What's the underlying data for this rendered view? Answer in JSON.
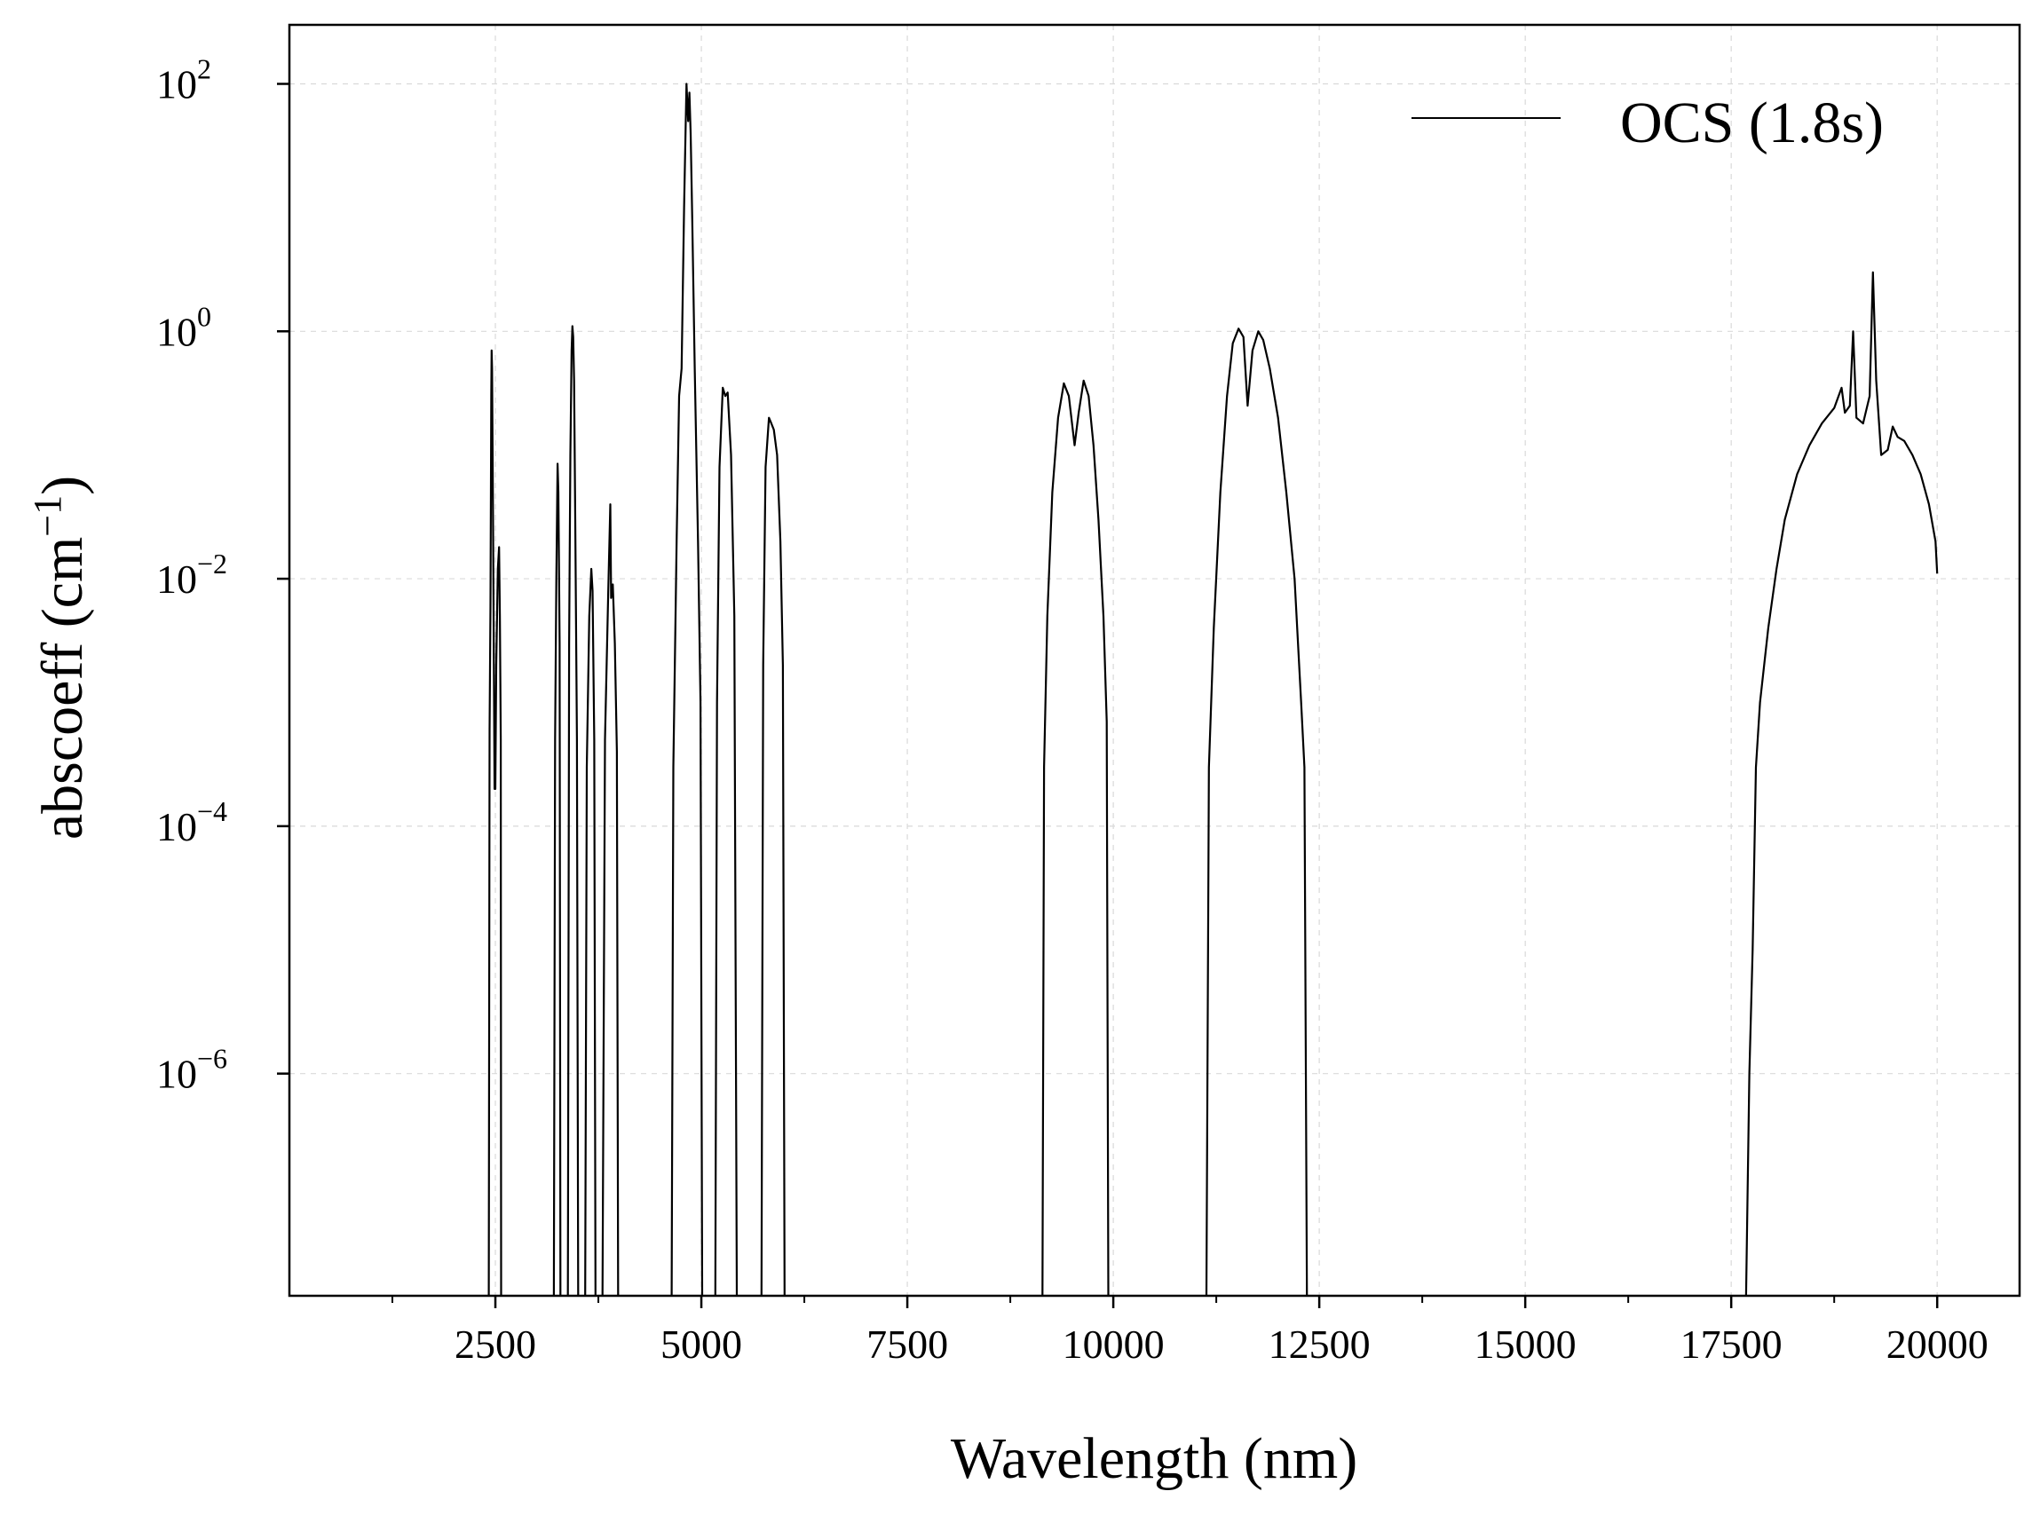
{
  "chart_data": {
    "type": "line",
    "title": "",
    "xlabel": "Wavelength (nm)",
    "ylabel": "abscoeff (cm",
    "ylabel_unit_exponent": "−1",
    "ylabel_close": ")",
    "yscale": "log",
    "grid": true,
    "legend_placement": "top-right",
    "xlim": [
      0,
      21000
    ],
    "ylim": [
      1.6e-08,
      300
    ],
    "x_ticks": [
      {
        "value": 2500,
        "label": "2500"
      },
      {
        "value": 5000,
        "label": "5000"
      },
      {
        "value": 7500,
        "label": "7500"
      },
      {
        "value": 10000,
        "label": "10000"
      },
      {
        "value": 12500,
        "label": "12500"
      },
      {
        "value": 15000,
        "label": "15000"
      },
      {
        "value": 17500,
        "label": "17500"
      },
      {
        "value": 20000,
        "label": "20000"
      }
    ],
    "x_minor_ticks": [
      1250,
      3750,
      6250,
      8750,
      11250,
      13750,
      16250,
      18750
    ],
    "y_ticks": [
      {
        "value": 100.0,
        "base": "10",
        "exp": "2"
      },
      {
        "value": 1.0,
        "base": "10",
        "exp": "0"
      },
      {
        "value": 0.01,
        "base": "10",
        "exp": "−2"
      },
      {
        "value": 0.0001,
        "base": "10",
        "exp": "−4"
      },
      {
        "value": 1e-06,
        "base": "10",
        "exp": "−6"
      }
    ],
    "series": [
      {
        "name": "OCS (1.8s)",
        "color": "#000000",
        "segments": [
          [
            [
              2420,
              1.6e-08
            ],
            [
              2430,
              0.0006
            ],
            [
              2440,
              0.006
            ],
            [
              2450,
              0.3
            ],
            [
              2455,
              0.7
            ],
            [
              2460,
              0.5
            ],
            [
              2470,
              0.05
            ],
            [
              2480,
              0.003
            ],
            [
              2490,
              0.0002
            ],
            [
              2500,
              0.0002
            ],
            [
              2510,
              0.002
            ],
            [
              2530,
              0.012
            ],
            [
              2545,
              0.018
            ],
            [
              2555,
              0.005
            ],
            [
              2565,
              0.0005
            ],
            [
              2570,
              1.6e-08
            ]
          ],
          [
            [
              3210,
              1.6e-08
            ],
            [
              3225,
              0.0005
            ],
            [
              3240,
              0.01
            ],
            [
              3255,
              0.085
            ],
            [
              3265,
              0.05
            ],
            [
              3280,
              0.003
            ],
            [
              3290,
              1.6e-08
            ]
          ],
          [
            [
              3380,
              1.6e-08
            ],
            [
              3395,
              0.003
            ],
            [
              3410,
              0.1
            ],
            [
              3425,
              0.7
            ],
            [
              3435,
              1.1
            ],
            [
              3445,
              0.9
            ],
            [
              3455,
              0.4
            ],
            [
              3470,
              0.03
            ],
            [
              3490,
              0.0005
            ],
            [
              3505,
              1.6e-08
            ]
          ],
          [
            [
              3590,
              1.6e-08
            ],
            [
              3610,
              0.0003
            ],
            [
              3640,
              0.005
            ],
            [
              3665,
              0.012
            ],
            [
              3680,
              0.008
            ],
            [
              3700,
              0.0005
            ],
            [
              3715,
              1.6e-08
            ]
          ],
          [
            [
              3800,
              1.6e-08
            ],
            [
              3830,
              0.0005
            ],
            [
              3870,
              0.008
            ],
            [
              3895,
              0.04
            ],
            [
              3905,
              0.007
            ],
            [
              3925,
              0.009
            ],
            [
              3950,
              0.003
            ],
            [
              3975,
              0.0004
            ],
            [
              3990,
              1.6e-08
            ]
          ],
          [
            [
              4640,
              1.6e-08
            ],
            [
              4660,
              0.0003
            ],
            [
              4700,
              0.02
            ],
            [
              4730,
              0.3
            ],
            [
              4760,
              0.5
            ],
            [
              4790,
              10
            ],
            [
              4820,
              100
            ],
            [
              4840,
              50
            ],
            [
              4855,
              85
            ],
            [
              4870,
              40
            ],
            [
              4890,
              8
            ],
            [
              4920,
              0.5
            ],
            [
              4960,
              0.02
            ],
            [
              4990,
              0.001
            ],
            [
              5010,
              1.6e-08
            ]
          ],
          [
            [
              5170,
              1.6e-08
            ],
            [
              5190,
              0.001
            ],
            [
              5220,
              0.08
            ],
            [
              5260,
              0.35
            ],
            [
              5290,
              0.3
            ],
            [
              5320,
              0.32
            ],
            [
              5360,
              0.1
            ],
            [
              5400,
              0.005
            ],
            [
              5430,
              1.6e-08
            ]
          ],
          [
            [
              5730,
              1.6e-08
            ],
            [
              5750,
              0.002
            ],
            [
              5780,
              0.08
            ],
            [
              5820,
              0.2
            ],
            [
              5850,
              0.18
            ],
            [
              5880,
              0.16
            ],
            [
              5920,
              0.1
            ],
            [
              5960,
              0.02
            ],
            [
              5990,
              0.002
            ],
            [
              6010,
              1.6e-08
            ]
          ],
          [
            [
              9140,
              1.6e-08
            ],
            [
              9160,
              0.0003
            ],
            [
              9200,
              0.005
            ],
            [
              9260,
              0.05
            ],
            [
              9330,
              0.2
            ],
            [
              9400,
              0.38
            ],
            [
              9460,
              0.3
            ],
            [
              9530,
              0.12
            ],
            [
              9580,
              0.22
            ],
            [
              9640,
              0.4
            ],
            [
              9700,
              0.3
            ],
            [
              9760,
              0.12
            ],
            [
              9820,
              0.03
            ],
            [
              9880,
              0.005
            ],
            [
              9920,
              0.0007
            ],
            [
              9940,
              1.6e-08
            ]
          ],
          [
            [
              11130,
              1.6e-08
            ],
            [
              11160,
              0.0003
            ],
            [
              11220,
              0.004
            ],
            [
              11300,
              0.05
            ],
            [
              11380,
              0.3
            ],
            [
              11450,
              0.8
            ],
            [
              11520,
              1.05
            ],
            [
              11580,
              0.9
            ],
            [
              11630,
              0.25
            ],
            [
              11690,
              0.7
            ],
            [
              11760,
              1.0
            ],
            [
              11820,
              0.85
            ],
            [
              11900,
              0.5
            ],
            [
              12000,
              0.2
            ],
            [
              12100,
              0.05
            ],
            [
              12200,
              0.01
            ],
            [
              12280,
              0.001
            ],
            [
              12320,
              0.0003
            ],
            [
              12350,
              1.6e-08
            ]
          ],
          [
            [
              17680,
              1.6e-08
            ],
            [
              17720,
              1e-06
            ],
            [
              17760,
              1e-05
            ],
            [
              17800,
              0.0003
            ],
            [
              17850,
              0.001
            ],
            [
              17950,
              0.004
            ],
            [
              18050,
              0.012
            ],
            [
              18150,
              0.03
            ],
            [
              18300,
              0.07
            ],
            [
              18450,
              0.12
            ],
            [
              18600,
              0.18
            ],
            [
              18750,
              0.24
            ],
            [
              18840,
              0.35
            ],
            [
              18880,
              0.22
            ],
            [
              18940,
              0.25
            ],
            [
              18980,
              1.0
            ],
            [
              19020,
              0.2
            ],
            [
              19100,
              0.18
            ],
            [
              19180,
              0.3
            ],
            [
              19220,
              3.0
            ],
            [
              19260,
              0.4
            ],
            [
              19320,
              0.1
            ],
            [
              19400,
              0.11
            ],
            [
              19460,
              0.17
            ],
            [
              19520,
              0.14
            ],
            [
              19600,
              0.13
            ],
            [
              19700,
              0.1
            ],
            [
              19800,
              0.07
            ],
            [
              19900,
              0.04
            ],
            [
              19980,
              0.02
            ],
            [
              20000,
              0.011
            ]
          ]
        ]
      }
    ]
  }
}
